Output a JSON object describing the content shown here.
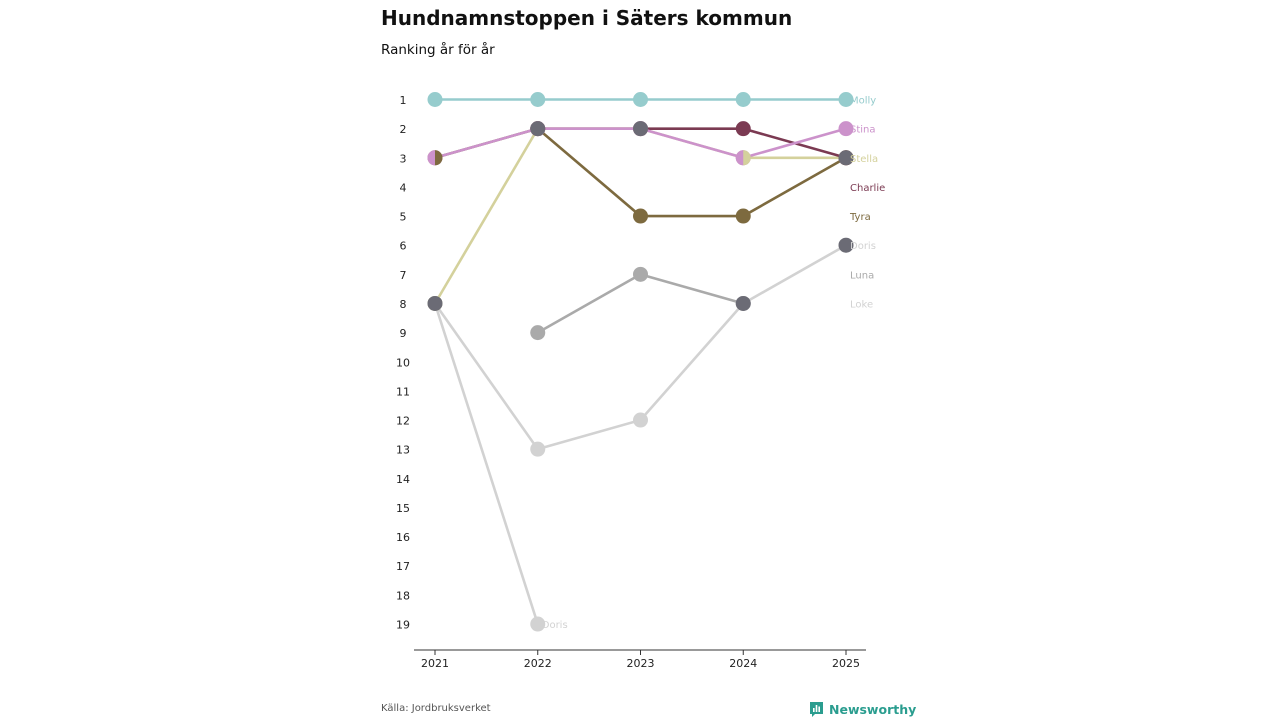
{
  "header": {
    "title": "Hundnamnstoppen i Säters kommun",
    "subtitle": "Ranking år för år"
  },
  "footer": {
    "source": "Källa: Jordbruksverket",
    "brand": "Newsworthy",
    "brand_color": "#2a9d8f"
  },
  "chart_data": {
    "type": "line",
    "title": "Hundnamnstoppen i Säters kommun",
    "subtitle": "Ranking år för år",
    "xlabel": "",
    "ylabel": "",
    "x": [
      "2021",
      "2022",
      "2023",
      "2024",
      "2025"
    ],
    "y_ticks": [
      "1",
      "2",
      "3",
      "4",
      "5",
      "6",
      "7",
      "8",
      "9",
      "10",
      "11",
      "12",
      "13",
      "14",
      "15",
      "16",
      "17",
      "18",
      "19"
    ],
    "ylim": [
      1,
      19
    ],
    "y_inverted": true,
    "series": [
      {
        "name": "Luna",
        "color": "#aaaaaa",
        "values": [
          null,
          9,
          7,
          8,
          null
        ],
        "end_label": "Luna"
      },
      {
        "name": "Loke",
        "color": "#d2d2d2",
        "values": [
          8,
          13,
          12,
          8,
          6
        ],
        "end_label": "Loke"
      },
      {
        "name": "Doris",
        "color": "#d2d2d2",
        "values": [
          8,
          19,
          null,
          null,
          null
        ],
        "end_label": "Doris",
        "point_label": {
          "index": 1,
          "text": "Doris"
        }
      },
      {
        "name": "Stella",
        "color": "#d4d19c",
        "values": [
          8,
          2,
          2,
          3,
          3
        ],
        "end_label": "Stella"
      },
      {
        "name": "Tyra",
        "color": "#7d6a3f",
        "values": [
          3,
          2,
          5,
          5,
          3
        ],
        "end_label": "Tyra"
      },
      {
        "name": "Charlie",
        "color": "#7b3a52",
        "values": [
          null,
          2,
          2,
          2,
          3
        ],
        "end_label": "Charlie"
      },
      {
        "name": "Stina",
        "color": "#cc92cb",
        "values": [
          3,
          2,
          2,
          3,
          2
        ],
        "end_label": "Stina"
      },
      {
        "name": "Molly",
        "color": "#96cccd",
        "values": [
          1,
          1,
          1,
          1,
          1
        ],
        "end_label": "Molly"
      }
    ],
    "shared_markers": {
      "color": "#6b6b75",
      "points": [
        {
          "x": "2021",
          "rank": 8
        },
        {
          "x": "2022",
          "rank": 2
        },
        {
          "x": "2023",
          "rank": 2
        },
        {
          "x": "2024",
          "rank": 8
        },
        {
          "x": "2025",
          "rank": 3
        },
        {
          "x": "2025",
          "rank": 6
        }
      ]
    },
    "split_markers": [
      {
        "x": "2021",
        "rank": 3,
        "left_color": "#cc92cb",
        "right_color": "#7d6a3f"
      },
      {
        "x": "2024",
        "rank": 3,
        "left_color": "#cc92cb",
        "right_color": "#d4d19c"
      }
    ],
    "end_labels": [
      {
        "text": "Molly",
        "rank": 1,
        "color": "#96cccd"
      },
      {
        "text": "Stina",
        "rank": 2,
        "color": "#cc92cb"
      },
      {
        "text": "Stella",
        "rank": 3,
        "color": "#d4d19c"
      },
      {
        "text": "Charlie",
        "rank": 4,
        "color": "#7b3a52"
      },
      {
        "text": "Tyra",
        "rank": 5,
        "color": "#7d6a3f"
      },
      {
        "text": "Doris",
        "rank": 6,
        "color": "#d2d2d2"
      },
      {
        "text": "Luna",
        "rank": 7,
        "color": "#aaaaaa"
      },
      {
        "text": "Loke",
        "rank": 8,
        "color": "#d2d2d2"
      }
    ],
    "axis_color": "#333333",
    "tick_label_color": "#222222"
  }
}
